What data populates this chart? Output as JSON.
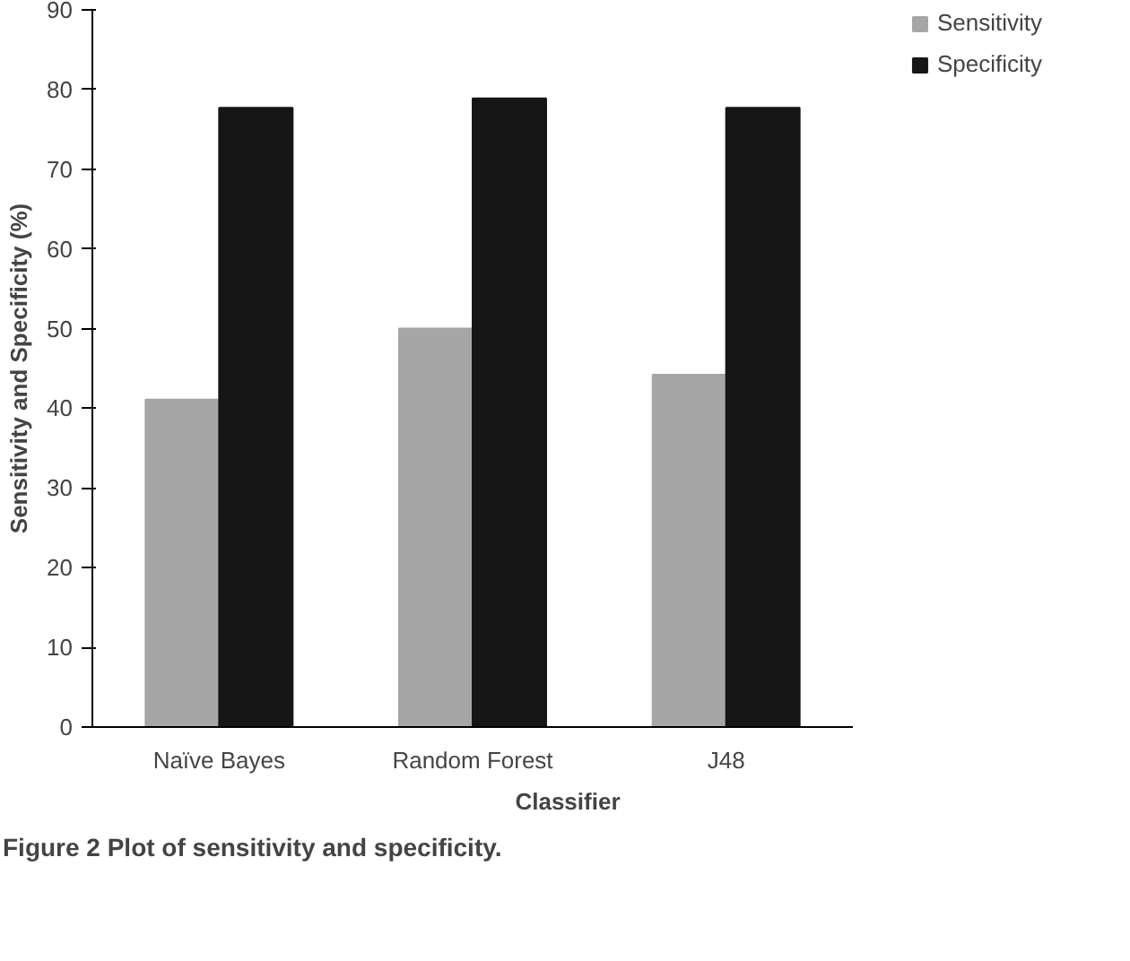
{
  "chart_data": {
    "type": "bar",
    "xlabel": "Classifier",
    "ylabel": "Sensitivity and Specificity (%)",
    "categories": [
      "Naïve Bayes",
      "Random Forest",
      "J48"
    ],
    "series": [
      {
        "name": "Sensitivity",
        "color": "#a6a6a6",
        "values": [
          41.1,
          50.0,
          44.2
        ]
      },
      {
        "name": "Specificity",
        "color": "#161616",
        "values": [
          77.7,
          78.9,
          77.7
        ]
      }
    ],
    "ylim": [
      0,
      90
    ],
    "yticks": [
      0,
      10,
      20,
      30,
      40,
      50,
      60,
      70,
      80,
      90
    ],
    "grid": false,
    "legend": "top right",
    "annotations": [
      "Figure 2 Plot of sensitivity and specificity."
    ]
  }
}
